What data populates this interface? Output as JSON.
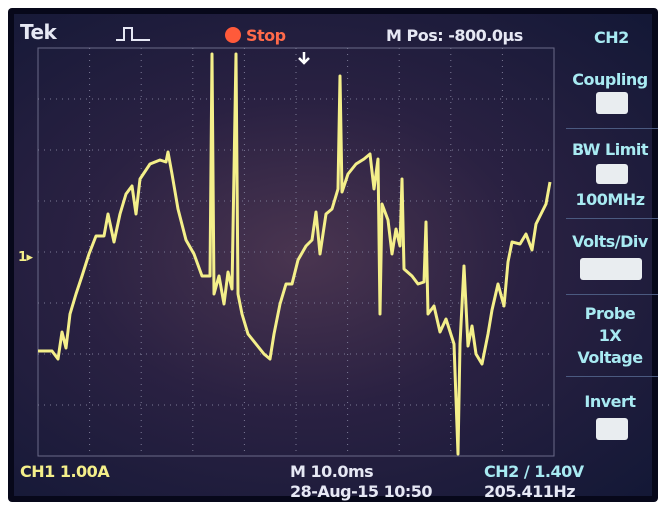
{
  "top_bar": {
    "brand": "Tek",
    "state": "Stop",
    "position": "M Pos: -800.0µs",
    "channel": "CH2"
  },
  "menu": {
    "items": [
      "Coupling",
      "BW Limit",
      "100MHz",
      "Volts/Div",
      "Probe",
      "1X",
      "Voltage",
      "Invert"
    ]
  },
  "marker": "1▸",
  "bottom_bar": {
    "ch1": "CH1  1.00A",
    "timebase": "M 10.0ms",
    "date": "28-Aug-15 10:50",
    "trigger": "CH2 / 1.40V",
    "frequency": "205.411Hz"
  }
}
